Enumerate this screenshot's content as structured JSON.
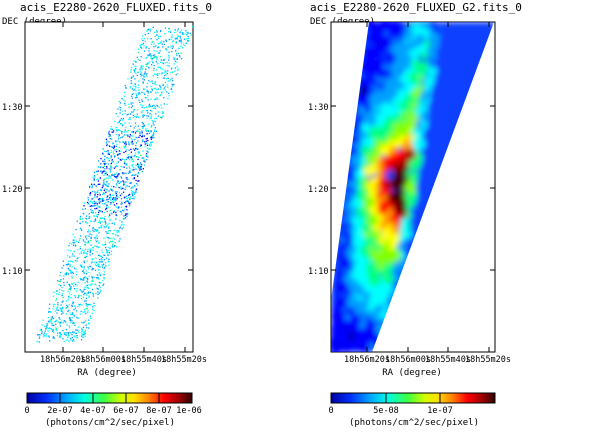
{
  "chart_data": [
    {
      "type": "heatmap",
      "title": "acis_E2280-2620_FLUXED.fits_0",
      "xlabel": "RA (degree)",
      "ylabel": "DEC (degree)",
      "x_ticks": [
        "18h56m20s",
        "18h56m00s",
        "18h55m40s",
        "18h55m20s"
      ],
      "y_ticks": [
        "1:30",
        "1:20",
        "1:10"
      ],
      "colorbar": {
        "ticks": [
          "0",
          "2e-07",
          "4e-07",
          "6e-07",
          "8e-07",
          "1e-06"
        ],
        "unit": "(photons/cm^2/sec/pixel)",
        "range": [
          0,
          1e-06
        ]
      },
      "rendering": "sparse scattered pixels, mostly low values (cyan/blue), denser blue band near DEC 1:20"
    },
    {
      "type": "heatmap",
      "title": "acis_E2280-2620_FLUXED_G2.fits_0",
      "xlabel": "RA (degree)",
      "ylabel": "DEC (degree)",
      "x_ticks": [
        "18h56m20s",
        "18h56m00s",
        "18h55m40s",
        "18h55m20s"
      ],
      "y_ticks": [
        "1:30",
        "1:20",
        "1:10"
      ],
      "colorbar": {
        "ticks": [
          "0",
          "5e-08",
          "1e-07"
        ],
        "unit": "(photons/cm^2/sec/pixel)",
        "range": [
          0,
          1.5e-07
        ]
      },
      "rendering": "smoothed map, peak (red) near DEC 1:20, falling to blue at the strip edges"
    }
  ],
  "palette": [
    "#000080",
    "#0000ff",
    "#00a0ff",
    "#00ffff",
    "#00ff80",
    "#80ff00",
    "#ffff00",
    "#ffa000",
    "#ff0000",
    "#a00000",
    "#400000"
  ]
}
